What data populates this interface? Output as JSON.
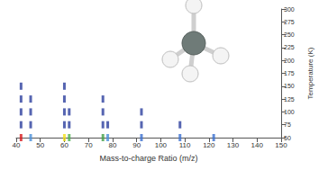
{
  "chart_data": {
    "type": "scatter",
    "x_label": "Mass-to-charge Ratio (m/z)",
    "y_label": "Temperature (K)",
    "x": [
      42,
      42,
      42,
      42,
      42,
      46,
      46,
      46,
      46,
      60,
      60,
      60,
      60,
      60,
      62,
      62,
      62,
      76,
      76,
      76,
      76,
      78,
      78,
      92,
      92,
      92,
      108,
      108,
      122
    ],
    "values": [
      50,
      75,
      100,
      125,
      150,
      50,
      75,
      100,
      125,
      50,
      75,
      100,
      125,
      150,
      50,
      75,
      100,
      50,
      75,
      100,
      125,
      50,
      75,
      50,
      75,
      100,
      50,
      75,
      50
    ],
    "colors": [
      "#d7191c",
      "#2c3e9e",
      "#2c3e9e",
      "#2c3e9e",
      "#2c3e9e",
      "#4a90d9",
      "#2c3e9e",
      "#2c3e9e",
      "#2c3e9e",
      "#f2e01a",
      "#2c3e9e",
      "#2c3e9e",
      "#2c3e9e",
      "#2c3e9e",
      "#4caf50",
      "#2c3e9e",
      "#2c3e9e",
      "#43a047",
      "#2c3e9e",
      "#2c3e9e",
      "#2c3e9e",
      "#4a90d9",
      "#2c3e9e",
      "#3a6fd0",
      "#2c3e9e",
      "#2c3e9e",
      "#3a6fd0",
      "#2c3e9e",
      "#3a6fd0"
    ],
    "xlim": [
      40,
      150
    ],
    "xticks": [
      40,
      50,
      60,
      70,
      80,
      90,
      100,
      110,
      120,
      130,
      140,
      150
    ],
    "ylim": [
      50,
      300
    ],
    "yticks": [
      50,
      75,
      100,
      125,
      150,
      175,
      200,
      225,
      250,
      275,
      300
    ],
    "grid": false
  }
}
